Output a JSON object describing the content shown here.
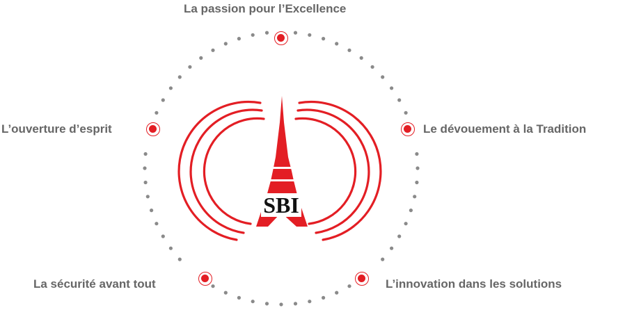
{
  "logo": {
    "text": "SBI",
    "name": "SBI"
  },
  "values": [
    {
      "id": "passion",
      "label": "La passion pour l’Excellence"
    },
    {
      "id": "tradition",
      "label": "Le dévouement à la Tradition"
    },
    {
      "id": "innovation",
      "label": "L’innovation dans les solutions"
    },
    {
      "id": "securite",
      "label": "La sécurité avant tout"
    },
    {
      "id": "ouverture",
      "label": "L’ouverture d’esprit"
    }
  ],
  "colors": {
    "accent": "#e31e24",
    "dots": "#8a8a8a",
    "text": "#666666"
  }
}
